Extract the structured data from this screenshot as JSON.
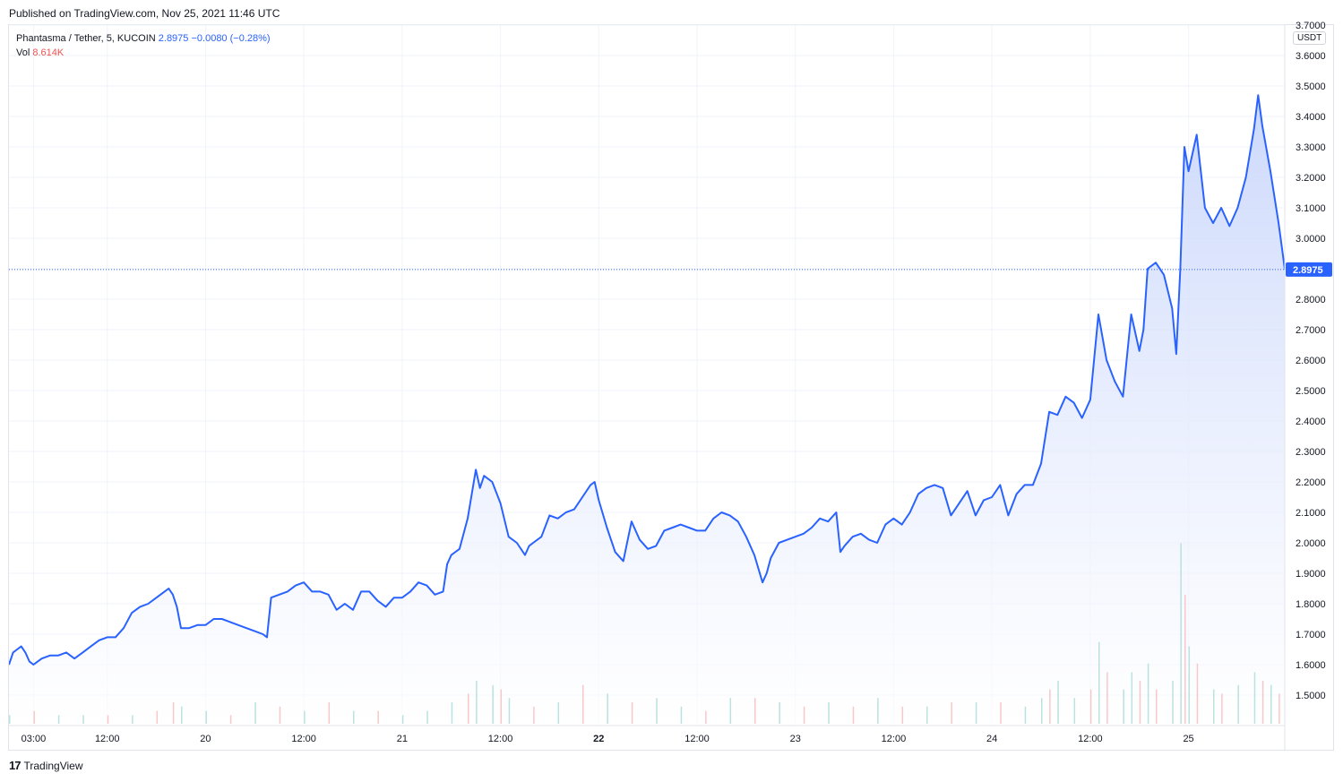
{
  "header": {
    "published": "Published on TradingView.com, Nov 25, 2021 11:46 UTC"
  },
  "legend": {
    "symbol": "Phantasma / Tether, 5, KUCOIN",
    "last": "2.8975",
    "change": "−0.0080 (−0.28%)",
    "vol_label": "Vol",
    "vol_value": "8.614K"
  },
  "currency": "USDT",
  "last_price_label": "2.8975",
  "footer": {
    "logo_glyph": "17",
    "brand": "TradingView"
  },
  "colors": {
    "line": "#2962ff",
    "area_top": "#c3d2fb",
    "area_bottom": "#ffffff",
    "vol_up": "#26a69a",
    "vol_down": "#ef5350",
    "grid": "#f0f3fa",
    "axis_text": "#131722",
    "price_label_bg": "#2962ff"
  },
  "chart_data": {
    "type": "area",
    "title": "Phantasma / Tether, 5, KUCOIN",
    "ylim": [
      1.4,
      3.7
    ],
    "y_ticks": [
      "1.5000",
      "1.6000",
      "1.7000",
      "1.8000",
      "1.9000",
      "2.0000",
      "2.1000",
      "2.2000",
      "2.3000",
      "2.4000",
      "2.5000",
      "2.6000",
      "2.7000",
      "2.8000",
      "2.9000",
      "3.0000",
      "3.1000",
      "3.2000",
      "3.3000",
      "3.4000",
      "3.5000",
      "3.6000",
      "3.7000"
    ],
    "x_ticks": [
      "03:00",
      "12:00",
      "20",
      "12:00",
      "21",
      "12:00",
      "22",
      "12:00",
      "23",
      "12:00",
      "24",
      "12:00",
      "25"
    ],
    "x_tick_hours": [
      3,
      12,
      24,
      36,
      48,
      60,
      72,
      84,
      96,
      108,
      120,
      132,
      144
    ],
    "x_range_hours": [
      0,
      155.75
    ],
    "last_price": 2.8975,
    "grid": true,
    "series": [
      {
        "points": [
          [
            0,
            1.6
          ],
          [
            0.5,
            1.64
          ],
          [
            1,
            1.65
          ],
          [
            1.5,
            1.66
          ],
          [
            2,
            1.64
          ],
          [
            2.5,
            1.61
          ],
          [
            3,
            1.6
          ],
          [
            3.5,
            1.61
          ],
          [
            4,
            1.62
          ],
          [
            5,
            1.63
          ],
          [
            6,
            1.63
          ],
          [
            7,
            1.64
          ],
          [
            8,
            1.62
          ],
          [
            9,
            1.64
          ],
          [
            10,
            1.66
          ],
          [
            11,
            1.68
          ],
          [
            12,
            1.69
          ],
          [
            13,
            1.69
          ],
          [
            14,
            1.72
          ],
          [
            15,
            1.77
          ],
          [
            16,
            1.79
          ],
          [
            17,
            1.8
          ],
          [
            18,
            1.82
          ],
          [
            19,
            1.84
          ],
          [
            19.5,
            1.85
          ],
          [
            20,
            1.83
          ],
          [
            20.5,
            1.79
          ],
          [
            21,
            1.72
          ],
          [
            22,
            1.72
          ],
          [
            23,
            1.73
          ],
          [
            24,
            1.73
          ],
          [
            25,
            1.75
          ],
          [
            26,
            1.75
          ],
          [
            27,
            1.74
          ],
          [
            28,
            1.73
          ],
          [
            29,
            1.72
          ],
          [
            30,
            1.71
          ],
          [
            31,
            1.7
          ],
          [
            31.5,
            1.69
          ],
          [
            32,
            1.82
          ],
          [
            33,
            1.83
          ],
          [
            34,
            1.84
          ],
          [
            35,
            1.86
          ],
          [
            36,
            1.87
          ],
          [
            37,
            1.84
          ],
          [
            38,
            1.84
          ],
          [
            39,
            1.83
          ],
          [
            40,
            1.78
          ],
          [
            41,
            1.8
          ],
          [
            42,
            1.78
          ],
          [
            43,
            1.84
          ],
          [
            44,
            1.84
          ],
          [
            45,
            1.81
          ],
          [
            46,
            1.79
          ],
          [
            47,
            1.82
          ],
          [
            48,
            1.82
          ],
          [
            49,
            1.84
          ],
          [
            50,
            1.87
          ],
          [
            51,
            1.86
          ],
          [
            52,
            1.83
          ],
          [
            53,
            1.84
          ],
          [
            53.5,
            1.93
          ],
          [
            54,
            1.96
          ],
          [
            55,
            1.98
          ],
          [
            56,
            2.08
          ],
          [
            57,
            2.24
          ],
          [
            57.5,
            2.18
          ],
          [
            58,
            2.22
          ],
          [
            59,
            2.2
          ],
          [
            60,
            2.13
          ],
          [
            61,
            2.02
          ],
          [
            62,
            2.0
          ],
          [
            63,
            1.96
          ],
          [
            63.5,
            1.99
          ],
          [
            64,
            2.0
          ],
          [
            65,
            2.02
          ],
          [
            66,
            2.09
          ],
          [
            67,
            2.08
          ],
          [
            68,
            2.1
          ],
          [
            69,
            2.11
          ],
          [
            70,
            2.15
          ],
          [
            71,
            2.19
          ],
          [
            71.5,
            2.2
          ],
          [
            72,
            2.14
          ],
          [
            73,
            2.05
          ],
          [
            74,
            1.97
          ],
          [
            75,
            1.94
          ],
          [
            76,
            2.07
          ],
          [
            77,
            2.01
          ],
          [
            78,
            1.98
          ],
          [
            79,
            1.99
          ],
          [
            80,
            2.04
          ],
          [
            81,
            2.05
          ],
          [
            82,
            2.06
          ],
          [
            83,
            2.05
          ],
          [
            84,
            2.04
          ],
          [
            85,
            2.04
          ],
          [
            86,
            2.08
          ],
          [
            87,
            2.1
          ],
          [
            88,
            2.09
          ],
          [
            89,
            2.07
          ],
          [
            90,
            2.02
          ],
          [
            91,
            1.96
          ],
          [
            92,
            1.87
          ],
          [
            92.5,
            1.9
          ],
          [
            93,
            1.95
          ],
          [
            94,
            2.0
          ],
          [
            95,
            2.01
          ],
          [
            96,
            2.02
          ],
          [
            97,
            2.03
          ],
          [
            98,
            2.05
          ],
          [
            99,
            2.08
          ],
          [
            100,
            2.07
          ],
          [
            101,
            2.1
          ],
          [
            101.5,
            1.97
          ],
          [
            102,
            1.99
          ],
          [
            103,
            2.02
          ],
          [
            104,
            2.03
          ],
          [
            105,
            2.01
          ],
          [
            106,
            2.0
          ],
          [
            107,
            2.06
          ],
          [
            108,
            2.08
          ],
          [
            109,
            2.06
          ],
          [
            110,
            2.1
          ],
          [
            111,
            2.16
          ],
          [
            112,
            2.18
          ],
          [
            113,
            2.19
          ],
          [
            114,
            2.18
          ],
          [
            115,
            2.09
          ],
          [
            116,
            2.13
          ],
          [
            117,
            2.17
          ],
          [
            118,
            2.09
          ],
          [
            119,
            2.14
          ],
          [
            120,
            2.15
          ],
          [
            121,
            2.19
          ],
          [
            122,
            2.09
          ],
          [
            123,
            2.16
          ],
          [
            124,
            2.19
          ],
          [
            125,
            2.19
          ],
          [
            126,
            2.26
          ],
          [
            127,
            2.43
          ],
          [
            128,
            2.42
          ],
          [
            129,
            2.48
          ],
          [
            130,
            2.46
          ],
          [
            131,
            2.41
          ],
          [
            132,
            2.47
          ],
          [
            133,
            2.75
          ],
          [
            134,
            2.6
          ],
          [
            135,
            2.53
          ],
          [
            136,
            2.48
          ],
          [
            137,
            2.75
          ],
          [
            138,
            2.63
          ],
          [
            138.5,
            2.7
          ],
          [
            139,
            2.9
          ],
          [
            140,
            2.92
          ],
          [
            141,
            2.88
          ],
          [
            142,
            2.77
          ],
          [
            142.5,
            2.62
          ],
          [
            143,
            2.9
          ],
          [
            143.5,
            3.3
          ],
          [
            144,
            3.22
          ],
          [
            145,
            3.34
          ],
          [
            146,
            3.1
          ],
          [
            147,
            3.05
          ],
          [
            148,
            3.1
          ],
          [
            149,
            3.04
          ],
          [
            150,
            3.1
          ],
          [
            151,
            3.2
          ],
          [
            152,
            3.36
          ],
          [
            152.5,
            3.47
          ],
          [
            153,
            3.37
          ],
          [
            154,
            3.22
          ],
          [
            155,
            3.05
          ],
          [
            155.5,
            2.95
          ],
          [
            155.75,
            2.8975
          ]
        ]
      }
    ],
    "volume": {
      "note_scale": "relative",
      "samples": [
        [
          0,
          0.02,
          1
        ],
        [
          3,
          0.03,
          0
        ],
        [
          6,
          0.02,
          1
        ],
        [
          9,
          0.02,
          1
        ],
        [
          12,
          0.02,
          0
        ],
        [
          15,
          0.02,
          1
        ],
        [
          18,
          0.03,
          0
        ],
        [
          20,
          0.05,
          0
        ],
        [
          21,
          0.04,
          1
        ],
        [
          24,
          0.03,
          1
        ],
        [
          27,
          0.02,
          0
        ],
        [
          30,
          0.05,
          1
        ],
        [
          33,
          0.04,
          0
        ],
        [
          36,
          0.03,
          1
        ],
        [
          39,
          0.05,
          0
        ],
        [
          42,
          0.03,
          1
        ],
        [
          45,
          0.03,
          0
        ],
        [
          48,
          0.02,
          1
        ],
        [
          51,
          0.03,
          1
        ],
        [
          54,
          0.05,
          1
        ],
        [
          56,
          0.07,
          0
        ],
        [
          57,
          0.1,
          1
        ],
        [
          59,
          0.09,
          1
        ],
        [
          60,
          0.08,
          0
        ],
        [
          61,
          0.06,
          1
        ],
        [
          64,
          0.04,
          0
        ],
        [
          67,
          0.05,
          1
        ],
        [
          70,
          0.09,
          0
        ],
        [
          73,
          0.07,
          1
        ],
        [
          76,
          0.05,
          0
        ],
        [
          79,
          0.06,
          1
        ],
        [
          82,
          0.04,
          1
        ],
        [
          85,
          0.03,
          0
        ],
        [
          88,
          0.06,
          1
        ],
        [
          91,
          0.06,
          0
        ],
        [
          94,
          0.05,
          1
        ],
        [
          97,
          0.04,
          0
        ],
        [
          100,
          0.05,
          1
        ],
        [
          103,
          0.04,
          0
        ],
        [
          106,
          0.06,
          1
        ],
        [
          109,
          0.04,
          0
        ],
        [
          112,
          0.04,
          1
        ],
        [
          115,
          0.05,
          0
        ],
        [
          118,
          0.05,
          1
        ],
        [
          121,
          0.05,
          0
        ],
        [
          124,
          0.04,
          1
        ],
        [
          126,
          0.06,
          1
        ],
        [
          127,
          0.08,
          0
        ],
        [
          128,
          0.1,
          1
        ],
        [
          130,
          0.06,
          1
        ],
        [
          132,
          0.08,
          0
        ],
        [
          133,
          0.19,
          1
        ],
        [
          134,
          0.12,
          0
        ],
        [
          136,
          0.08,
          1
        ],
        [
          137,
          0.12,
          1
        ],
        [
          138,
          0.1,
          0
        ],
        [
          139,
          0.14,
          1
        ],
        [
          140,
          0.08,
          0
        ],
        [
          142,
          0.1,
          1
        ],
        [
          143,
          0.42,
          1
        ],
        [
          143.5,
          0.3,
          0
        ],
        [
          144,
          0.18,
          1
        ],
        [
          145,
          0.14,
          0
        ],
        [
          147,
          0.08,
          1
        ],
        [
          148,
          0.07,
          0
        ],
        [
          150,
          0.09,
          1
        ],
        [
          152,
          0.12,
          1
        ],
        [
          153,
          0.1,
          0
        ],
        [
          154,
          0.09,
          1
        ],
        [
          155,
          0.07,
          0
        ]
      ]
    }
  }
}
